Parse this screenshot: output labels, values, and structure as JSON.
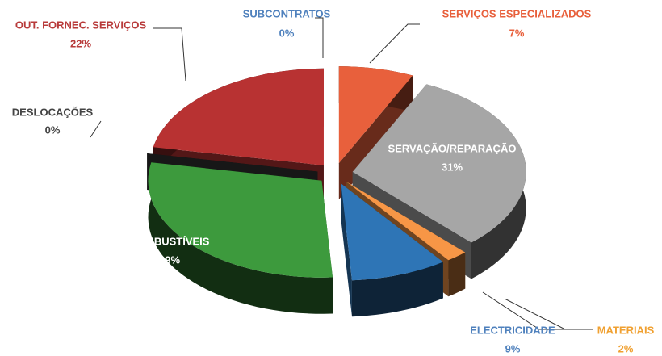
{
  "chart_data": {
    "type": "pie",
    "categories": [
      "SUBCONTRATOS",
      "SERVIÇOS ESPECIALIZADOS",
      "SERVAÇÃO/REPARAÇÃO",
      "MATERIAIS",
      "ELECTRICIDADE",
      "COMBUSTÍVEIS",
      "DESLOCAÇÕES",
      "OUT. FORNEC. SERVIÇOS"
    ],
    "values": [
      0,
      7,
      31,
      2,
      9,
      29,
      0,
      22
    ],
    "value_labels": [
      "0%",
      "7%",
      "31%",
      "2%",
      "9%",
      "29%",
      "0%",
      "22%"
    ],
    "colors": [
      "#4f81bd",
      "#e8603c",
      "#a6a6a6",
      "#f79646",
      "#2e75b6",
      "#3d9a3d",
      "#333333",
      "#b83232"
    ]
  }
}
